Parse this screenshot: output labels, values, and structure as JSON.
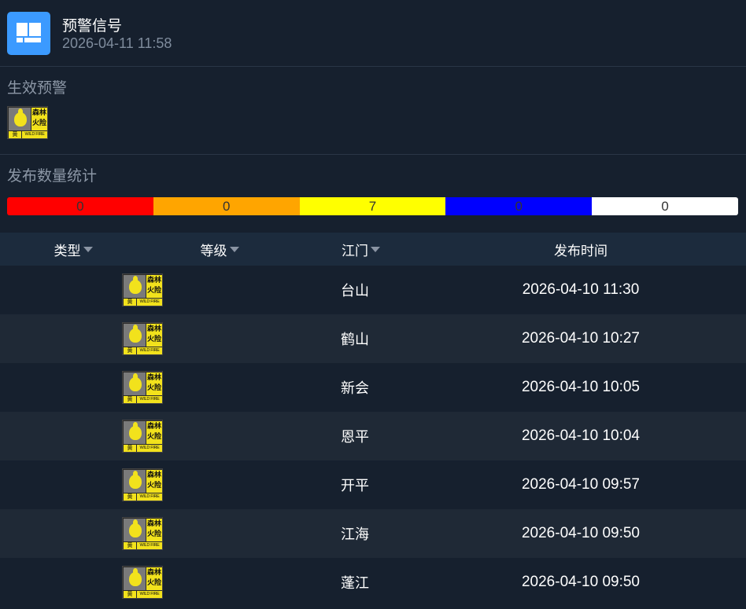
{
  "header": {
    "title": "预警信号",
    "datetime": "2026-04-11 11:58",
    "icon": "panel-layout-icon",
    "accent": "#3b9aff"
  },
  "active": {
    "label": "生效预警",
    "badges": [
      {
        "type": "森林火险",
        "level": "黄",
        "text_top": "森林",
        "text_bottom": "火险",
        "english": "WILD FIRE"
      }
    ]
  },
  "stats": {
    "label": "发布数量统计",
    "levels": [
      {
        "color": "#ff0000",
        "count": "0"
      },
      {
        "color": "#ffa500",
        "count": "0"
      },
      {
        "color": "#ffff00",
        "count": "7"
      },
      {
        "color": "#0000ff",
        "count": "0"
      },
      {
        "color": "#ffffff",
        "count": "0"
      }
    ]
  },
  "table": {
    "headers": {
      "type": "类型",
      "level": "等级",
      "region": "江门",
      "time": "发布时间"
    },
    "badge": {
      "text_top": "森林",
      "text_bottom": "火险",
      "level": "黄",
      "english": "WILD FIRE"
    },
    "rows": [
      {
        "region": "台山",
        "time": "2026-04-10 11:30"
      },
      {
        "region": "鹤山",
        "time": "2026-04-10 10:27"
      },
      {
        "region": "新会",
        "time": "2026-04-10 10:05"
      },
      {
        "region": "恩平",
        "time": "2026-04-10 10:04"
      },
      {
        "region": "开平",
        "time": "2026-04-10 09:57"
      },
      {
        "region": "江海",
        "time": "2026-04-10 09:50"
      },
      {
        "region": "蓬江",
        "time": "2026-04-10 09:50"
      }
    ]
  }
}
